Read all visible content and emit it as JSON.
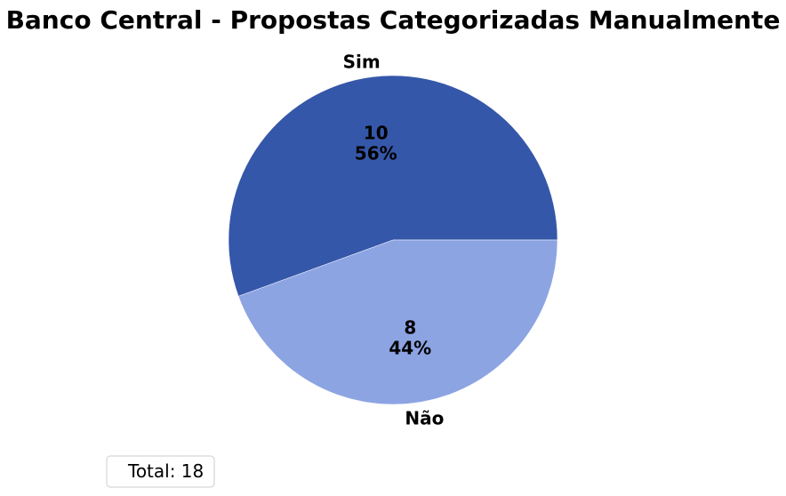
{
  "chart_data": {
    "type": "pie",
    "title": "Banco Central - Propostas Categorizadas Manualmente",
    "categories": [
      "Sim",
      "Não"
    ],
    "values": [
      10,
      8
    ],
    "value_labels": [
      "10",
      "8"
    ],
    "percent_labels": [
      "56%",
      "44%"
    ],
    "colors": [
      "#3557A9",
      "#8DA4E3"
    ],
    "legend": {
      "text": "Total: 18",
      "placement": "lower-left"
    }
  }
}
